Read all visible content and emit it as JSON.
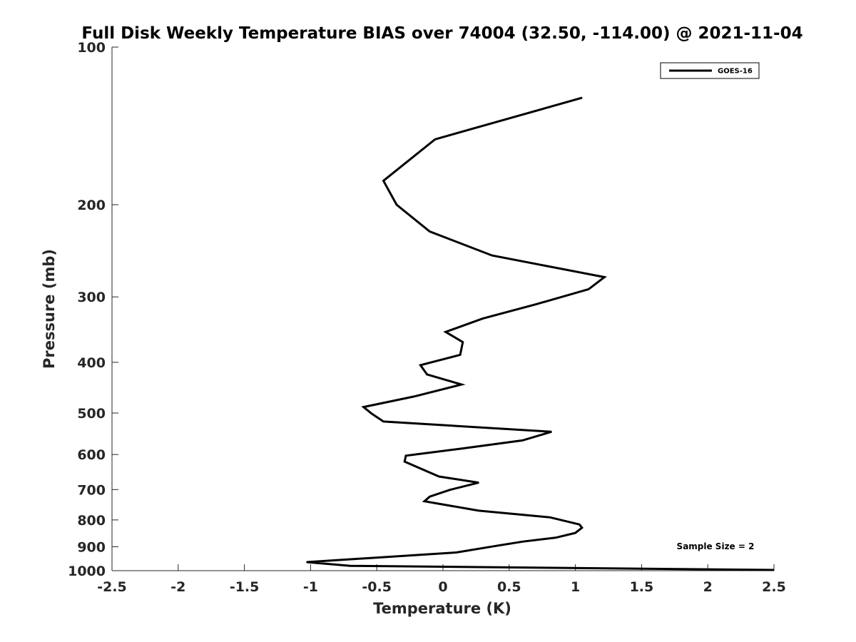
{
  "chart_data": {
    "type": "line",
    "title": "Full Disk Weekly Temperature BIAS over 74004 (32.50, -114.00) @ 2021-11-04",
    "xlabel": "Temperature (K)",
    "ylabel": "Pressure (mb)",
    "xlim": [
      -2.5,
      2.5
    ],
    "ylim": [
      100,
      1000
    ],
    "y_scale": "log",
    "y_reversed": true,
    "xticks": [
      -2.5,
      -2,
      -1.5,
      -1,
      -0.5,
      0,
      0.5,
      1,
      1.5,
      2,
      2.5
    ],
    "xtick_labels": [
      "-2.5",
      "-2",
      "-1.5",
      "-1",
      "-0.5",
      "0",
      "0.5",
      "1",
      "1.5",
      "2",
      "2.5"
    ],
    "yticks": [
      100,
      200,
      300,
      400,
      500,
      600,
      700,
      800,
      900,
      1000
    ],
    "ytick_labels": [
      "100",
      "200",
      "300",
      "400",
      "500",
      "600",
      "700",
      "800",
      "900",
      "1000"
    ],
    "grid": false,
    "legend": {
      "position": "top-right",
      "entries": [
        "GOES-16"
      ]
    },
    "annotations": [
      {
        "text": "Sample Size = 2",
        "position": "bottom-right"
      }
    ],
    "series": [
      {
        "name": "GOES-16",
        "color": "#000000",
        "points": [
          [
            1.05,
            125
          ],
          [
            -0.06,
            150
          ],
          [
            -0.45,
            180
          ],
          [
            -0.35,
            200
          ],
          [
            -0.1,
            225
          ],
          [
            0.37,
            250
          ],
          [
            1.22,
            275
          ],
          [
            1.1,
            290
          ],
          [
            0.7,
            310
          ],
          [
            0.3,
            330
          ],
          [
            0.02,
            350
          ],
          [
            0.15,
            366
          ],
          [
            0.13,
            387
          ],
          [
            -0.17,
            405
          ],
          [
            -0.12,
            422
          ],
          [
            0.14,
            441
          ],
          [
            -0.22,
            465
          ],
          [
            -0.6,
            487
          ],
          [
            -0.54,
            501
          ],
          [
            -0.45,
            519
          ],
          [
            0.82,
            543
          ],
          [
            0.6,
            564
          ],
          [
            0.13,
            585
          ],
          [
            -0.28,
            603
          ],
          [
            -0.29,
            619
          ],
          [
            -0.03,
            661
          ],
          [
            0.27,
            679
          ],
          [
            0.05,
            701
          ],
          [
            -0.1,
            722
          ],
          [
            -0.14,
            737
          ],
          [
            0.27,
            768
          ],
          [
            0.81,
            791
          ],
          [
            1.03,
            816
          ],
          [
            1.05,
            828
          ],
          [
            1.0,
            847
          ],
          [
            0.85,
            865
          ],
          [
            0.6,
            880
          ],
          [
            0.4,
            897
          ],
          [
            0.1,
            923
          ],
          [
            -1.03,
            963
          ],
          [
            -0.7,
            979
          ],
          [
            2.5,
            997
          ]
        ]
      }
    ]
  }
}
